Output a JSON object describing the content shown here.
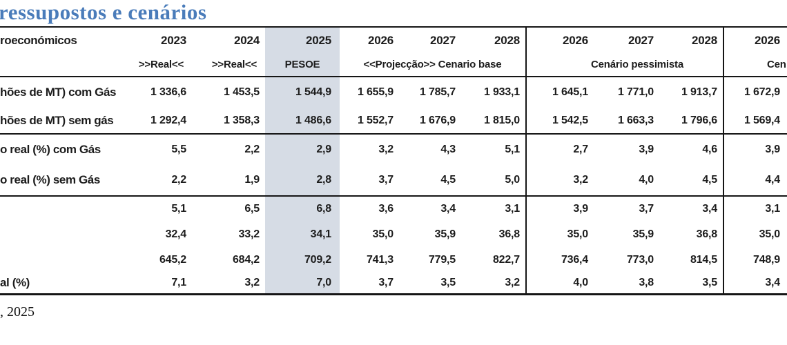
{
  "title": "ressupostos e cenários",
  "footer": ", 2025",
  "colors": {
    "title_blue": "#4a7cba",
    "column_highlight": "#d6dce5",
    "border": "#151515"
  },
  "table": {
    "header": {
      "label": "roeconómicos",
      "years": [
        "2023",
        "2024",
        "2025",
        "2026",
        "2027",
        "2028",
        "2026",
        "2027",
        "2028",
        "2026"
      ],
      "subheaders": {
        "col2023": ">>Real<<",
        "col2024": ">>Real<<",
        "col2025": "PESOE",
        "base_group": "<<Projecção>> Cenario base",
        "pessimist_group": "Cenário pessimista",
        "optimist_group": "Cen"
      }
    },
    "rows": [
      {
        "label": "hões de MT) com Gás",
        "values": [
          "1 336,6",
          "1 453,5",
          "1 544,9",
          "1 655,9",
          "1 785,7",
          "1 933,1",
          "1 645,1",
          "1 771,0",
          "1 913,7",
          "1 672,9"
        ]
      },
      {
        "label": "hões de MT) sem gás",
        "values": [
          "1 292,4",
          "1 358,3",
          "1 486,6",
          "1 552,7",
          "1 676,9",
          "1 815,0",
          "1 542,5",
          "1 663,3",
          "1 796,6",
          "1 569,4"
        ]
      },
      {
        "label": "o real (%) com Gás",
        "values": [
          "5,5",
          "2,2",
          "2,9",
          "3,2",
          "4,3",
          "5,1",
          "2,7",
          "3,9",
          "4,6",
          "3,9"
        ]
      },
      {
        "label": "o real (%) sem Gás",
        "values": [
          "2,2",
          "1,9",
          "2,8",
          "3,7",
          "4,5",
          "5,0",
          "3,2",
          "4,0",
          "4,5",
          "4,4"
        ]
      },
      {
        "label": "",
        "values": [
          "5,1",
          "6,5",
          "6,8",
          "3,6",
          "3,4",
          "3,1",
          "3,9",
          "3,7",
          "3,4",
          "3,1"
        ]
      },
      {
        "label": "",
        "values": [
          "32,4",
          "33,2",
          "34,1",
          "35,0",
          "35,9",
          "36,8",
          "35,0",
          "35,9",
          "36,8",
          "35,0"
        ]
      },
      {
        "label": "",
        "values": [
          "645,2",
          "684,2",
          "709,2",
          "741,3",
          "779,5",
          "822,7",
          "736,4",
          "773,0",
          "814,5",
          "748,9"
        ]
      },
      {
        "label": "al (%)",
        "values": [
          "7,1",
          "3,2",
          "7,0",
          "3,7",
          "3,5",
          "3,2",
          "4,0",
          "3,8",
          "3,5",
          "3,4"
        ]
      }
    ]
  }
}
